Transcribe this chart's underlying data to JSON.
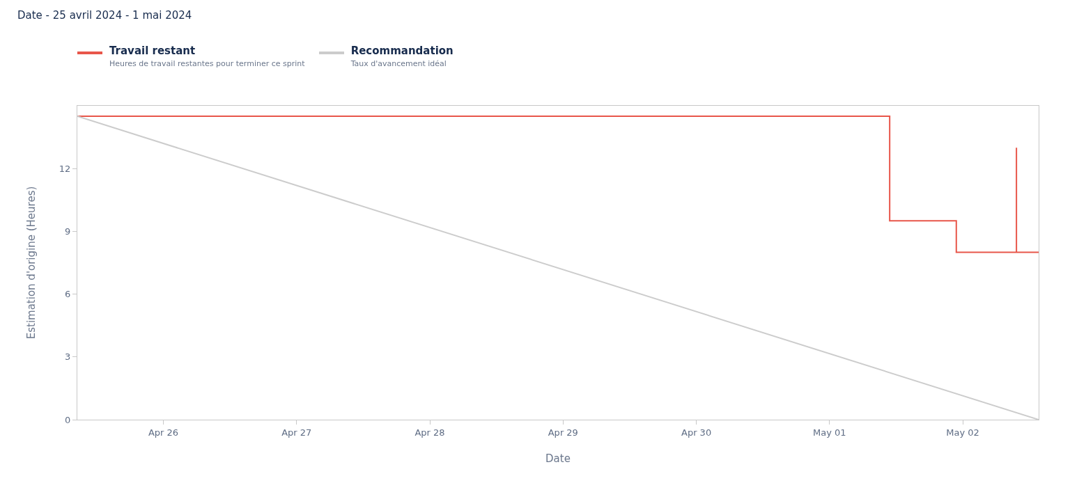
{
  "chart_data": {
    "type": "line",
    "title": "Date - 25 avril 2024 - 1 mai 2024",
    "xlabel": "Date",
    "ylabel": "Estimation d'origine (Heures)",
    "series": [
      {
        "name": "Travail restant",
        "type": "step",
        "color": "#e8564a",
        "x": [
          "2024-04-25T08:30",
          "2024-05-01T10:50",
          "2024-05-01T22:50",
          "2024-05-02T09:40",
          "2024-05-02T09:40",
          "2024-05-02T13:40"
        ],
        "values": [
          14.5,
          9.5,
          8,
          13,
          8,
          8
        ]
      },
      {
        "name": "Recommandation",
        "color": "#cccccc",
        "x": [
          "2024-04-25T08:30",
          "2024-05-02T13:40"
        ],
        "values": [
          14.5,
          0
        ]
      }
    ],
    "annotations": [
      "Heures de travail restantes pour terminer ce sprint",
      "Taux d'avancement idéal"
    ],
    "xlim": [
      "2024-04-25T08:30",
      "2024-05-02T13:40"
    ],
    "xticks": [
      {
        "value": "2024-04-26",
        "label": "Apr 26"
      },
      {
        "value": "2024-04-27",
        "label": "Apr 27"
      },
      {
        "value": "2024-04-28",
        "label": "Apr 28"
      },
      {
        "value": "2024-04-29",
        "label": "Apr 29"
      },
      {
        "value": "2024-04-30",
        "label": "Apr 30"
      },
      {
        "value": "2024-05-01",
        "label": "May 01"
      },
      {
        "value": "2024-05-02",
        "label": "May 02"
      }
    ],
    "ylim": [
      0,
      15
    ],
    "yticks": [
      0,
      3,
      6,
      9,
      12
    ],
    "grid": false,
    "legend": "top left",
    "line_style": "solid",
    "marker": "none"
  }
}
